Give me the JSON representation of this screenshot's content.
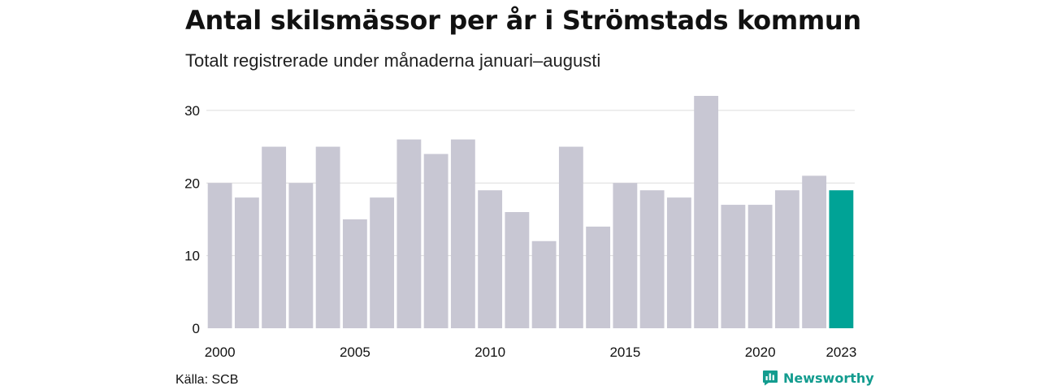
{
  "title": "Antal skilsmässor per år i Strömstads kommun",
  "subtitle": "Totalt registrerade under månaderna januari–augusti",
  "source": "Källa: SCB",
  "brand": "Newsworthy",
  "brand_icon": "newsworthy-logo-icon",
  "colors": {
    "bar": "#c8c7d3",
    "highlight": "#00a396",
    "grid": "#dddddd",
    "text": "#111111"
  },
  "chart_data": {
    "type": "bar",
    "title": "Antal skilsmässor per år i Strömstads kommun",
    "subtitle": "Totalt registrerade under månaderna januari–augusti",
    "categories": [
      2000,
      2001,
      2002,
      2003,
      2004,
      2005,
      2006,
      2007,
      2008,
      2009,
      2010,
      2011,
      2012,
      2013,
      2014,
      2015,
      2016,
      2017,
      2018,
      2019,
      2020,
      2021,
      2022,
      2023
    ],
    "values": [
      20,
      18,
      25,
      20,
      25,
      15,
      18,
      26,
      24,
      26,
      19,
      16,
      12,
      25,
      14,
      20,
      19,
      18,
      32,
      17,
      17,
      19,
      21,
      19
    ],
    "highlight_category": 2023,
    "x_tick_labels": [
      "2000",
      "2005",
      "2010",
      "2015",
      "2020",
      "2023"
    ],
    "y_ticks": [
      0,
      10,
      20,
      30
    ],
    "ylim": [
      0,
      32
    ],
    "xlabel": "",
    "ylabel": "",
    "grid": true
  }
}
